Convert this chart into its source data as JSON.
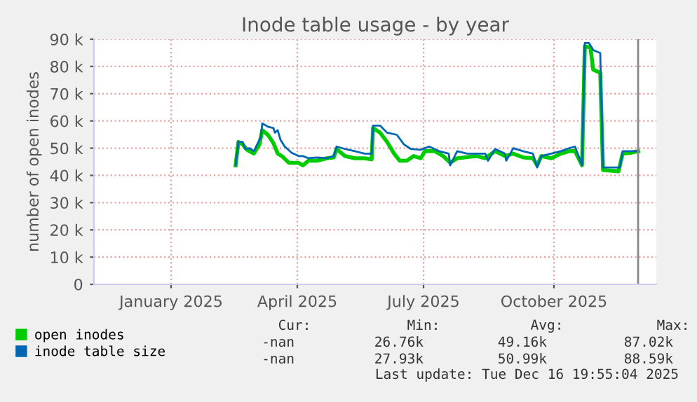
{
  "chart_data": {
    "type": "line",
    "title": "Inode table usage - by year",
    "ylabel": "number of open inodes",
    "xlim": [
      "2024-11-23",
      "2025-12-29"
    ],
    "xticks": [
      {
        "value": "2025-01-17",
        "label": "January 2025"
      },
      {
        "value": "2025-04-17",
        "label": "April 2025"
      },
      {
        "value": "2025-07-16",
        "label": "July 2025"
      },
      {
        "value": "2025-10-17",
        "label": "October 2025"
      }
    ],
    "ylim": [
      0,
      90000
    ],
    "yticks": [
      0,
      {
        "value": 10000,
        "label": "10 k"
      },
      {
        "value": 20000,
        "label": "20 k"
      },
      {
        "value": 30000,
        "label": "30 k"
      },
      {
        "value": 40000,
        "label": "40 k"
      },
      {
        "value": 50000,
        "label": "50 k"
      },
      {
        "value": 60000,
        "label": "60 k"
      },
      {
        "value": 70000,
        "label": "70 k"
      },
      {
        "value": 80000,
        "label": "80 k"
      },
      {
        "value": 90000,
        "label": "90 k"
      }
    ],
    "grid": true,
    "legend": "bottom left",
    "marker": "none",
    "line_style": "solid",
    "ref_lines": [
      {
        "axis": "x",
        "value": "2025-12-16",
        "color": "#888888"
      }
    ],
    "series": [
      {
        "name": "open inodes",
        "color": "#00cc00",
        "x": [
          "2025-03-04",
          "2025-03-06",
          "2025-03-09",
          "2025-03-12",
          "2025-03-17",
          "2025-03-21",
          "2025-03-23",
          "2025-03-27",
          "2025-03-31",
          "2025-04-03",
          "2025-04-06",
          "2025-04-11",
          "2025-04-18",
          "2025-04-21",
          "2025-04-25",
          "2025-05-01",
          "2025-05-08",
          "2025-05-13",
          "2025-05-15",
          "2025-05-21",
          "2025-05-28",
          "2025-06-04",
          "2025-06-09",
          "2025-06-10",
          "2025-06-15",
          "2025-06-20",
          "2025-06-25",
          "2025-06-29",
          "2025-07-04",
          "2025-07-09",
          "2025-07-14",
          "2025-07-17",
          "2025-07-24",
          "2025-07-30",
          "2025-08-04",
          "2025-08-09",
          "2025-08-23",
          "2025-08-29",
          "2025-09-05",
          "2025-09-12",
          "2025-09-18",
          "2025-09-25",
          "2025-10-02",
          "2025-10-05",
          "2025-10-08",
          "2025-10-15",
          "2025-10-22",
          "2025-10-28",
          "2025-11-01",
          "2025-11-06",
          "2025-11-08",
          "2025-11-12",
          "2025-11-14",
          "2025-11-19",
          "2025-11-21",
          "2025-12-02",
          "2025-12-05",
          "2025-12-11",
          "2025-12-16"
        ],
        "values": [
          43700,
          52300,
          51400,
          49400,
          48000,
          51400,
          56600,
          54900,
          51800,
          48000,
          47100,
          44600,
          44600,
          43700,
          45400,
          45400,
          46300,
          46600,
          49700,
          47100,
          46300,
          46300,
          45900,
          57400,
          55700,
          52300,
          48000,
          45400,
          45400,
          47100,
          46300,
          48900,
          48900,
          47100,
          44600,
          46300,
          47100,
          46300,
          48900,
          47100,
          48000,
          46600,
          46300,
          43700,
          47100,
          46300,
          48000,
          48900,
          48900,
          43700,
          87400,
          87000,
          78800,
          77700,
          42000,
          41500,
          48000,
          48300,
          48900
        ]
      },
      {
        "name": "inode table size",
        "color": "#0066b3",
        "x": [
          "2025-03-04",
          "2025-03-06",
          "2025-03-09",
          "2025-03-11",
          "2025-03-14",
          "2025-03-17",
          "2025-03-21",
          "2025-03-22",
          "2025-03-23",
          "2025-03-27",
          "2025-03-31",
          "2025-04-01",
          "2025-04-03",
          "2025-04-05",
          "2025-04-08",
          "2025-04-13",
          "2025-04-18",
          "2025-04-21",
          "2025-04-25",
          "2025-05-01",
          "2025-05-08",
          "2025-05-13",
          "2025-05-15",
          "2025-05-21",
          "2025-05-28",
          "2025-06-04",
          "2025-06-09",
          "2025-06-10",
          "2025-06-15",
          "2025-06-20",
          "2025-06-27",
          "2025-07-02",
          "2025-07-07",
          "2025-07-14",
          "2025-07-20",
          "2025-07-27",
          "2025-08-03",
          "2025-08-04",
          "2025-08-09",
          "2025-08-16",
          "2025-08-23",
          "2025-08-29",
          "2025-08-31",
          "2025-09-05",
          "2025-09-12",
          "2025-09-13",
          "2025-09-18",
          "2025-09-25",
          "2025-10-02",
          "2025-10-05",
          "2025-10-08",
          "2025-10-15",
          "2025-10-22",
          "2025-10-28",
          "2025-11-01",
          "2025-11-06",
          "2025-11-08",
          "2025-11-11",
          "2025-11-14",
          "2025-11-19",
          "2025-11-21",
          "2025-11-27",
          "2025-12-03",
          "2025-12-05",
          "2025-12-11",
          "2025-12-16"
        ],
        "values": [
          43700,
          52300,
          52300,
          49700,
          50000,
          48900,
          53100,
          54000,
          59100,
          57900,
          57400,
          55700,
          56600,
          53100,
          50600,
          48300,
          47100,
          47100,
          46300,
          46600,
          46300,
          47100,
          50600,
          49700,
          48900,
          48000,
          48000,
          58300,
          58300,
          55700,
          54900,
          51400,
          49700,
          49400,
          50600,
          48900,
          48000,
          43700,
          48900,
          48000,
          48000,
          48000,
          45400,
          49700,
          48000,
          45400,
          50000,
          48900,
          48000,
          42900,
          47100,
          48000,
          48900,
          50000,
          50600,
          43700,
          88600,
          88600,
          86000,
          84900,
          42900,
          42900,
          42900,
          48900,
          48900,
          48900
        ]
      }
    ],
    "annotations": [
      "Cur:",
      "Min:",
      "Avg:",
      "Max:",
      "-nan",
      "26.76k",
      "49.16k",
      "87.02k",
      "-nan",
      "27.93k",
      "50.99k",
      "88.59k",
      "Last update: Tue Dec 16 19:55:04 2025"
    ]
  }
}
